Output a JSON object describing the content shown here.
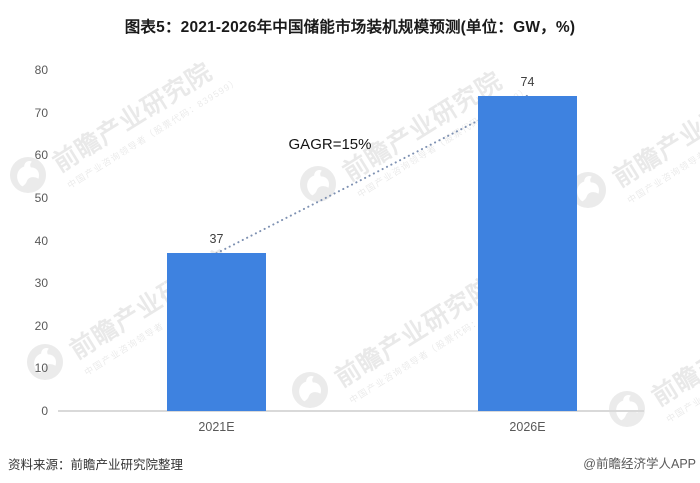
{
  "chart_data": {
    "type": "bar",
    "title": "图表5：2021-2026年中国储能市场装机规模预测(单位：GW，%)",
    "categories": [
      "2021E",
      "2026E"
    ],
    "values": [
      37,
      74
    ],
    "y_ticks": [
      "0",
      "10",
      "20",
      "30",
      "40",
      "50",
      "60",
      "70",
      "80"
    ],
    "ylim": [
      0,
      80
    ],
    "unit": "GW",
    "annotation": "GAGR=15%",
    "legend": "none",
    "grid": false,
    "bar_color": "#3E82E0",
    "trend_line": {
      "style": "dotted",
      "color": "#7E91B2",
      "from": "top of 2021E bar",
      "to": "top of 2026E bar"
    },
    "axis_line_color": "#D9D9D9",
    "tick_label_color": "#595959",
    "value_label_color": "#404040"
  },
  "footer": {
    "source": "资料来源：前瞻产业研究院整理",
    "credit": "@前瞻经济学人APP"
  },
  "watermark": {
    "brand": "前瞻产业研究院",
    "tagline": "中国产业咨询领导者（股票代码：839599）"
  }
}
